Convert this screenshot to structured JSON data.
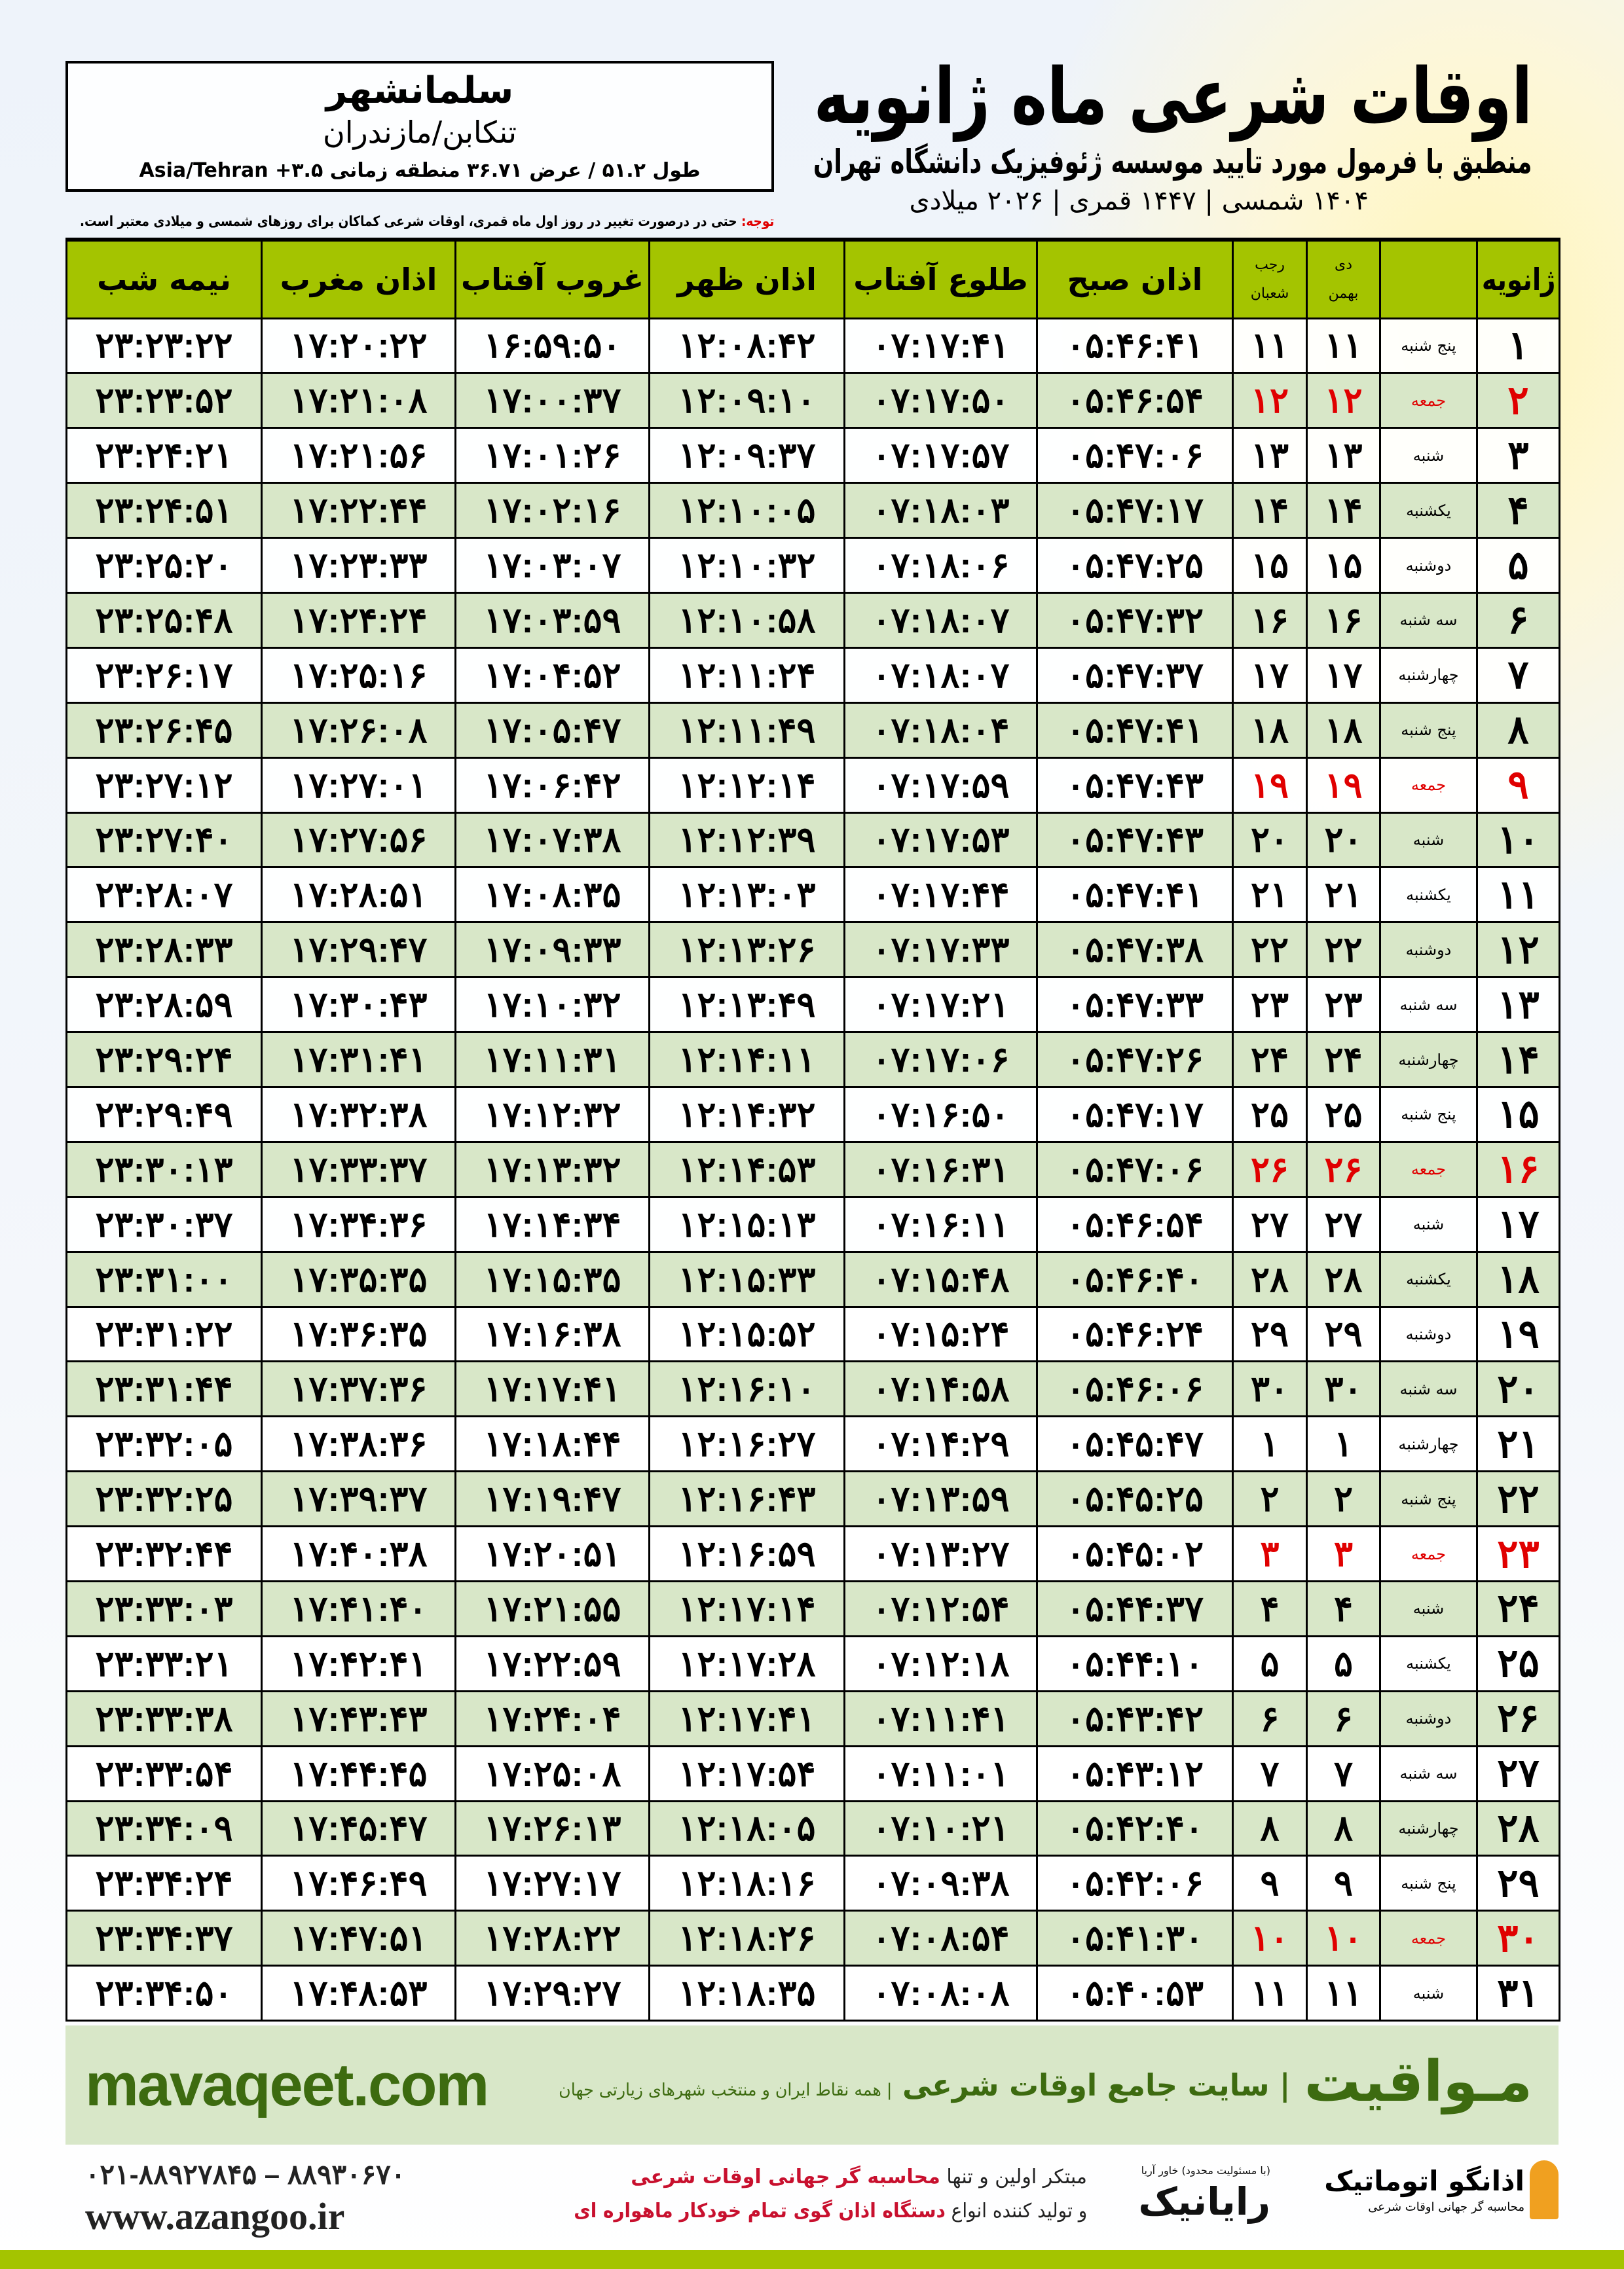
{
  "header": {
    "title": "اوقات شرعی ماه ژانویه",
    "subtitle": "منطبق با فرمول مورد تایید موسسه ژئوفیزیک دانشگاه تهران",
    "dates": "۱۴۰۴ شمسی | ۱۴۴۷ قمری | ۲۰۲۶ میلادی"
  },
  "location": {
    "city": "سلمانشهر",
    "region": "تنکابن/مازندران",
    "coords": "طول ۵۱.۲ / عرض ۳۶.۷۱ منطقه زمانی ۳.۵+ Asia/Tehran"
  },
  "note": {
    "label": "توجه:",
    "text": " حتی در درصورت تغییر در روز اول ماه قمری، اوقات شرعی کماکان برای روزهای شمسی و میلادی معتبر است."
  },
  "columns": {
    "day": "ژانویه",
    "persian_top": "دی",
    "persian_bottom": "بهمن",
    "hijri_top": "رجب",
    "hijri_bottom": "شعبان",
    "sobh": "اذان صبح",
    "tolu": "طلوع آفتاب",
    "zohr": "اذان ظهر",
    "ghurub": "غروب آفتاب",
    "maghrib": "اذان مغرب",
    "nimeh": "نیمه شب"
  },
  "colors": {
    "header_green": "#a4c400",
    "row_green": "#d8e7c8",
    "holiday_red": "#e00000",
    "brand_green": "#3d6b10"
  },
  "rows": [
    {
      "day": "۱",
      "weekday": "پنج شنبه",
      "persian": "۱۱",
      "hijri": "۱۱",
      "sobh": "۰۵:۴۶:۴۱",
      "tolu": "۰۷:۱۷:۴۱",
      "zohr": "۱۲:۰۸:۴۲",
      "ghurub": "۱۶:۵۹:۵۰",
      "maghrib": "۱۷:۲۰:۲۲",
      "nimeh": "۲۳:۲۳:۲۲",
      "holiday": false
    },
    {
      "day": "۲",
      "weekday": "جمعه",
      "persian": "۱۲",
      "hijri": "۱۲",
      "sobh": "۰۵:۴۶:۵۴",
      "tolu": "۰۷:۱۷:۵۰",
      "zohr": "۱۲:۰۹:۱۰",
      "ghurub": "۱۷:۰۰:۳۷",
      "maghrib": "۱۷:۲۱:۰۸",
      "nimeh": "۲۳:۲۳:۵۲",
      "holiday": true
    },
    {
      "day": "۳",
      "weekday": "شنبه",
      "persian": "۱۳",
      "hijri": "۱۳",
      "sobh": "۰۵:۴۷:۰۶",
      "tolu": "۰۷:۱۷:۵۷",
      "zohr": "۱۲:۰۹:۳۷",
      "ghurub": "۱۷:۰۱:۲۶",
      "maghrib": "۱۷:۲۱:۵۶",
      "nimeh": "۲۳:۲۴:۲۱",
      "holiday": false
    },
    {
      "day": "۴",
      "weekday": "یکشنبه",
      "persian": "۱۴",
      "hijri": "۱۴",
      "sobh": "۰۵:۴۷:۱۷",
      "tolu": "۰۷:۱۸:۰۳",
      "zohr": "۱۲:۱۰:۰۵",
      "ghurub": "۱۷:۰۲:۱۶",
      "maghrib": "۱۷:۲۲:۴۴",
      "nimeh": "۲۳:۲۴:۵۱",
      "holiday": false
    },
    {
      "day": "۵",
      "weekday": "دوشنبه",
      "persian": "۱۵",
      "hijri": "۱۵",
      "sobh": "۰۵:۴۷:۲۵",
      "tolu": "۰۷:۱۸:۰۶",
      "zohr": "۱۲:۱۰:۳۲",
      "ghurub": "۱۷:۰۳:۰۷",
      "maghrib": "۱۷:۲۳:۳۳",
      "nimeh": "۲۳:۲۵:۲۰",
      "holiday": false
    },
    {
      "day": "۶",
      "weekday": "سه شنبه",
      "persian": "۱۶",
      "hijri": "۱۶",
      "sobh": "۰۵:۴۷:۳۲",
      "tolu": "۰۷:۱۸:۰۷",
      "zohr": "۱۲:۱۰:۵۸",
      "ghurub": "۱۷:۰۳:۵۹",
      "maghrib": "۱۷:۲۴:۲۴",
      "nimeh": "۲۳:۲۵:۴۸",
      "holiday": false
    },
    {
      "day": "۷",
      "weekday": "چهارشنبه",
      "persian": "۱۷",
      "hijri": "۱۷",
      "sobh": "۰۵:۴۷:۳۷",
      "tolu": "۰۷:۱۸:۰۷",
      "zohr": "۱۲:۱۱:۲۴",
      "ghurub": "۱۷:۰۴:۵۲",
      "maghrib": "۱۷:۲۵:۱۶",
      "nimeh": "۲۳:۲۶:۱۷",
      "holiday": false
    },
    {
      "day": "۸",
      "weekday": "پنج شنبه",
      "persian": "۱۸",
      "hijri": "۱۸",
      "sobh": "۰۵:۴۷:۴۱",
      "tolu": "۰۷:۱۸:۰۴",
      "zohr": "۱۲:۱۱:۴۹",
      "ghurub": "۱۷:۰۵:۴۷",
      "maghrib": "۱۷:۲۶:۰۸",
      "nimeh": "۲۳:۲۶:۴۵",
      "holiday": false
    },
    {
      "day": "۹",
      "weekday": "جمعه",
      "persian": "۱۹",
      "hijri": "۱۹",
      "sobh": "۰۵:۴۷:۴۳",
      "tolu": "۰۷:۱۷:۵۹",
      "zohr": "۱۲:۱۲:۱۴",
      "ghurub": "۱۷:۰۶:۴۲",
      "maghrib": "۱۷:۲۷:۰۱",
      "nimeh": "۲۳:۲۷:۱۲",
      "holiday": true
    },
    {
      "day": "۱۰",
      "weekday": "شنبه",
      "persian": "۲۰",
      "hijri": "۲۰",
      "sobh": "۰۵:۴۷:۴۳",
      "tolu": "۰۷:۱۷:۵۳",
      "zohr": "۱۲:۱۲:۳۹",
      "ghurub": "۱۷:۰۷:۳۸",
      "maghrib": "۱۷:۲۷:۵۶",
      "nimeh": "۲۳:۲۷:۴۰",
      "holiday": false
    },
    {
      "day": "۱۱",
      "weekday": "یکشنبه",
      "persian": "۲۱",
      "hijri": "۲۱",
      "sobh": "۰۵:۴۷:۴۱",
      "tolu": "۰۷:۱۷:۴۴",
      "zohr": "۱۲:۱۳:۰۳",
      "ghurub": "۱۷:۰۸:۳۵",
      "maghrib": "۱۷:۲۸:۵۱",
      "nimeh": "۲۳:۲۸:۰۷",
      "holiday": false
    },
    {
      "day": "۱۲",
      "weekday": "دوشنبه",
      "persian": "۲۲",
      "hijri": "۲۲",
      "sobh": "۰۵:۴۷:۳۸",
      "tolu": "۰۷:۱۷:۳۳",
      "zohr": "۱۲:۱۳:۲۶",
      "ghurub": "۱۷:۰۹:۳۳",
      "maghrib": "۱۷:۲۹:۴۷",
      "nimeh": "۲۳:۲۸:۳۳",
      "holiday": false
    },
    {
      "day": "۱۳",
      "weekday": "سه شنبه",
      "persian": "۲۳",
      "hijri": "۲۳",
      "sobh": "۰۵:۴۷:۳۳",
      "tolu": "۰۷:۱۷:۲۱",
      "zohr": "۱۲:۱۳:۴۹",
      "ghurub": "۱۷:۱۰:۳۲",
      "maghrib": "۱۷:۳۰:۴۳",
      "nimeh": "۲۳:۲۸:۵۹",
      "holiday": false
    },
    {
      "day": "۱۴",
      "weekday": "چهارشنبه",
      "persian": "۲۴",
      "hijri": "۲۴",
      "sobh": "۰۵:۴۷:۲۶",
      "tolu": "۰۷:۱۷:۰۶",
      "zohr": "۱۲:۱۴:۱۱",
      "ghurub": "۱۷:۱۱:۳۱",
      "maghrib": "۱۷:۳۱:۴۱",
      "nimeh": "۲۳:۲۹:۲۴",
      "holiday": false
    },
    {
      "day": "۱۵",
      "weekday": "پنج شنبه",
      "persian": "۲۵",
      "hijri": "۲۵",
      "sobh": "۰۵:۴۷:۱۷",
      "tolu": "۰۷:۱۶:۵۰",
      "zohr": "۱۲:۱۴:۳۲",
      "ghurub": "۱۷:۱۲:۳۲",
      "maghrib": "۱۷:۳۲:۳۸",
      "nimeh": "۲۳:۲۹:۴۹",
      "holiday": false
    },
    {
      "day": "۱۶",
      "weekday": "جمعه",
      "persian": "۲۶",
      "hijri": "۲۶",
      "sobh": "۰۵:۴۷:۰۶",
      "tolu": "۰۷:۱۶:۳۱",
      "zohr": "۱۲:۱۴:۵۳",
      "ghurub": "۱۷:۱۳:۳۲",
      "maghrib": "۱۷:۳۳:۳۷",
      "nimeh": "۲۳:۳۰:۱۳",
      "holiday": true
    },
    {
      "day": "۱۷",
      "weekday": "شنبه",
      "persian": "۲۷",
      "hijri": "۲۷",
      "sobh": "۰۵:۴۶:۵۴",
      "tolu": "۰۷:۱۶:۱۱",
      "zohr": "۱۲:۱۵:۱۳",
      "ghurub": "۱۷:۱۴:۳۴",
      "maghrib": "۱۷:۳۴:۳۶",
      "nimeh": "۲۳:۳۰:۳۷",
      "holiday": false
    },
    {
      "day": "۱۸",
      "weekday": "یکشنبه",
      "persian": "۲۸",
      "hijri": "۲۸",
      "sobh": "۰۵:۴۶:۴۰",
      "tolu": "۰۷:۱۵:۴۸",
      "zohr": "۱۲:۱۵:۳۳",
      "ghurub": "۱۷:۱۵:۳۵",
      "maghrib": "۱۷:۳۵:۳۵",
      "nimeh": "۲۳:۳۱:۰۰",
      "holiday": false
    },
    {
      "day": "۱۹",
      "weekday": "دوشنبه",
      "persian": "۲۹",
      "hijri": "۲۹",
      "sobh": "۰۵:۴۶:۲۴",
      "tolu": "۰۷:۱۵:۲۴",
      "zohr": "۱۲:۱۵:۵۲",
      "ghurub": "۱۷:۱۶:۳۸",
      "maghrib": "۱۷:۳۶:۳۵",
      "nimeh": "۲۳:۳۱:۲۲",
      "holiday": false
    },
    {
      "day": "۲۰",
      "weekday": "سه شنبه",
      "persian": "۳۰",
      "hijri": "۳۰",
      "sobh": "۰۵:۴۶:۰۶",
      "tolu": "۰۷:۱۴:۵۸",
      "zohr": "۱۲:۱۶:۱۰",
      "ghurub": "۱۷:۱۷:۴۱",
      "maghrib": "۱۷:۳۷:۳۶",
      "nimeh": "۲۳:۳۱:۴۴",
      "holiday": false
    },
    {
      "day": "۲۱",
      "weekday": "چهارشنبه",
      "persian": "۱",
      "hijri": "۱",
      "sobh": "۰۵:۴۵:۴۷",
      "tolu": "۰۷:۱۴:۲۹",
      "zohr": "۱۲:۱۶:۲۷",
      "ghurub": "۱۷:۱۸:۴۴",
      "maghrib": "۱۷:۳۸:۳۶",
      "nimeh": "۲۳:۳۲:۰۵",
      "holiday": false
    },
    {
      "day": "۲۲",
      "weekday": "پنج شنبه",
      "persian": "۲",
      "hijri": "۲",
      "sobh": "۰۵:۴۵:۲۵",
      "tolu": "۰۷:۱۳:۵۹",
      "zohr": "۱۲:۱۶:۴۳",
      "ghurub": "۱۷:۱۹:۴۷",
      "maghrib": "۱۷:۳۹:۳۷",
      "nimeh": "۲۳:۳۲:۲۵",
      "holiday": false
    },
    {
      "day": "۲۳",
      "weekday": "جمعه",
      "persian": "۳",
      "hijri": "۳",
      "sobh": "۰۵:۴۵:۰۲",
      "tolu": "۰۷:۱۳:۲۷",
      "zohr": "۱۲:۱۶:۵۹",
      "ghurub": "۱۷:۲۰:۵۱",
      "maghrib": "۱۷:۴۰:۳۸",
      "nimeh": "۲۳:۳۲:۴۴",
      "holiday": true
    },
    {
      "day": "۲۴",
      "weekday": "شنبه",
      "persian": "۴",
      "hijri": "۴",
      "sobh": "۰۵:۴۴:۳۷",
      "tolu": "۰۷:۱۲:۵۴",
      "zohr": "۱۲:۱۷:۱۴",
      "ghurub": "۱۷:۲۱:۵۵",
      "maghrib": "۱۷:۴۱:۴۰",
      "nimeh": "۲۳:۳۳:۰۳",
      "holiday": false
    },
    {
      "day": "۲۵",
      "weekday": "یکشنبه",
      "persian": "۵",
      "hijri": "۵",
      "sobh": "۰۵:۴۴:۱۰",
      "tolu": "۰۷:۱۲:۱۸",
      "zohr": "۱۲:۱۷:۲۸",
      "ghurub": "۱۷:۲۲:۵۹",
      "maghrib": "۱۷:۴۲:۴۱",
      "nimeh": "۲۳:۳۳:۲۱",
      "holiday": false
    },
    {
      "day": "۲۶",
      "weekday": "دوشنبه",
      "persian": "۶",
      "hijri": "۶",
      "sobh": "۰۵:۴۳:۴۲",
      "tolu": "۰۷:۱۱:۴۱",
      "zohr": "۱۲:۱۷:۴۱",
      "ghurub": "۱۷:۲۴:۰۴",
      "maghrib": "۱۷:۴۳:۴۳",
      "nimeh": "۲۳:۳۳:۳۸",
      "holiday": false
    },
    {
      "day": "۲۷",
      "weekday": "سه شنبه",
      "persian": "۷",
      "hijri": "۷",
      "sobh": "۰۵:۴۳:۱۲",
      "tolu": "۰۷:۱۱:۰۱",
      "zohr": "۱۲:۱۷:۵۴",
      "ghurub": "۱۷:۲۵:۰۸",
      "maghrib": "۱۷:۴۴:۴۵",
      "nimeh": "۲۳:۳۳:۵۴",
      "holiday": false
    },
    {
      "day": "۲۸",
      "weekday": "چهارشنبه",
      "persian": "۸",
      "hijri": "۸",
      "sobh": "۰۵:۴۲:۴۰",
      "tolu": "۰۷:۱۰:۲۱",
      "zohr": "۱۲:۱۸:۰۵",
      "ghurub": "۱۷:۲۶:۱۳",
      "maghrib": "۱۷:۴۵:۴۷",
      "nimeh": "۲۳:۳۴:۰۹",
      "holiday": false
    },
    {
      "day": "۲۹",
      "weekday": "پنج شنبه",
      "persian": "۹",
      "hijri": "۹",
      "sobh": "۰۵:۴۲:۰۶",
      "tolu": "۰۷:۰۹:۳۸",
      "zohr": "۱۲:۱۸:۱۶",
      "ghurub": "۱۷:۲۷:۱۷",
      "maghrib": "۱۷:۴۶:۴۹",
      "nimeh": "۲۳:۳۴:۲۴",
      "holiday": false
    },
    {
      "day": "۳۰",
      "weekday": "جمعه",
      "persian": "۱۰",
      "hijri": "۱۰",
      "sobh": "۰۵:۴۱:۳۰",
      "tolu": "۰۷:۰۸:۵۴",
      "zohr": "۱۲:۱۸:۲۶",
      "ghurub": "۱۷:۲۸:۲۲",
      "maghrib": "۱۷:۴۷:۵۱",
      "nimeh": "۲۳:۳۴:۳۷",
      "holiday": true
    },
    {
      "day": "۳۱",
      "weekday": "شنبه",
      "persian": "۱۱",
      "hijri": "۱۱",
      "sobh": "۰۵:۴۰:۵۳",
      "tolu": "۰۷:۰۸:۰۸",
      "zohr": "۱۲:۱۸:۳۵",
      "ghurub": "۱۷:۲۹:۲۷",
      "maghrib": "۱۷:۴۸:۵۳",
      "nimeh": "۲۳:۳۴:۵۰",
      "holiday": false
    }
  ],
  "footer": {
    "brand": "مـواقیت",
    "slogan": "| سایت جامع اوقات شرعی",
    "slogan_sub": "| همه نقاط ایران و منتخب شهرهای زیارتی جهان",
    "site": "mavaqeet.com",
    "phone": "۰۲۱-۸۸۹۲۷۸۴۵ – ۸۸۹۳۰۶۷۰",
    "web": "www.azangoo.ir",
    "adv_line1_a": "مبتکر اولین و تنها ",
    "adv_line1_b": "محاسبه گر جهانی اوقات شرعی",
    "adv_line2_a": "و تولید کننده انواع ",
    "adv_line2_b": "دستگاه اذان گوی تمام خودکار ماهواره ای",
    "rayanik": "رایانیک",
    "rayanik_sub": "(با مسئولیت محدود) خاور آریا",
    "azangoo": "اذانگو اتوماتیک",
    "azangoo_sub": "محاسبه گر جهانی اوقات شرعی",
    "azangoo_logo": "azangoo"
  }
}
